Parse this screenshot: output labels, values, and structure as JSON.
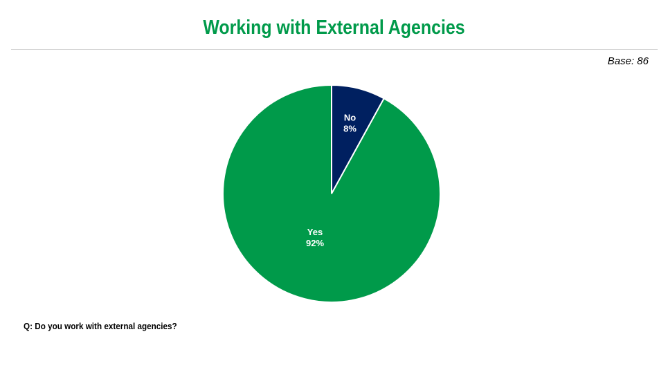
{
  "header": {
    "title": "Working with External Agencies",
    "title_color": "#009a4a"
  },
  "base_note": "Base: 86",
  "question": "Q: Do you work with external agencies?",
  "chart_data": {
    "type": "pie",
    "title": "Working with External Agencies",
    "categories": [
      "No",
      "Yes"
    ],
    "values": [
      8,
      92
    ],
    "value_labels": [
      "8%",
      "92%"
    ],
    "colors": [
      "#002060",
      "#009a4a"
    ],
    "start": "12 o'clock",
    "direction": "clockwise",
    "legend": "none"
  }
}
